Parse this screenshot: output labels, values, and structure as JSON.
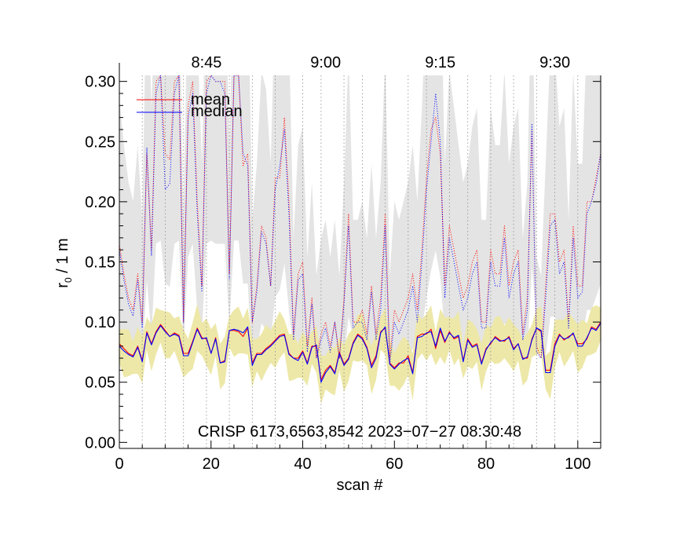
{
  "chart_data": {
    "type": "line",
    "xlabel": "scan #",
    "ylabel_main": "r",
    "ylabel_sub": "0",
    "ylabel_rest": " / 1 m",
    "annotation": "CRISP 6173,6563,8542 2023−07−27 08:30:48",
    "xlim": [
      0,
      105
    ],
    "ylim": [
      -0.005,
      0.305
    ],
    "x_ticks": [
      0,
      20,
      40,
      60,
      80,
      100
    ],
    "x_tick_labels": [
      "0",
      "20",
      "40",
      "60",
      "80",
      "100"
    ],
    "y_ticks": [
      0.0,
      0.05,
      0.1,
      0.15,
      0.2,
      0.25,
      0.3
    ],
    "y_tick_labels": [
      "0.00",
      "0.05",
      "0.10",
      "0.15",
      "0.20",
      "0.25",
      "0.30"
    ],
    "top_axis_ticks": [
      19,
      45,
      70,
      95
    ],
    "top_axis_labels": [
      "8:45",
      "9:00",
      "9:15",
      "9:30"
    ],
    "vertical_gridlines_x": [
      5,
      10,
      14,
      19,
      24,
      29,
      34,
      40,
      44,
      49,
      53,
      58,
      63,
      67,
      72,
      76,
      81,
      86,
      91,
      95,
      100,
      105
    ],
    "legend": [
      {
        "label": "mean",
        "color": "#ff0000"
      },
      {
        "label": "median",
        "color": "#0000ff"
      }
    ],
    "colors": {
      "mean": "#ff0000",
      "median": "#0000ff",
      "band_upper": "#e4e4e4",
      "band_lower": "#ede8a8",
      "grid": "#8c8c8c"
    },
    "series": [
      {
        "name": "upper mean",
        "style": "dotted",
        "color": "#ff0000",
        "x": [
          0,
          1,
          2,
          3,
          4,
          5,
          6,
          7,
          8,
          9,
          10,
          11,
          12,
          13,
          14,
          15,
          16,
          17,
          18,
          19,
          20,
          21,
          22,
          23,
          24,
          25,
          26,
          27,
          28,
          29,
          30,
          31,
          32,
          33,
          34,
          35,
          36,
          37,
          38,
          39,
          40,
          41,
          42,
          43,
          44,
          45,
          46,
          47,
          48,
          49,
          50,
          51,
          52,
          53,
          54,
          55,
          56,
          57,
          58,
          59,
          60,
          61,
          62,
          63,
          64,
          65,
          66,
          67,
          68,
          69,
          70,
          71,
          72,
          73,
          74,
          75,
          76,
          77,
          78,
          79,
          80,
          81,
          82,
          83,
          84,
          85,
          86,
          87,
          88,
          89,
          90,
          91,
          92,
          93,
          94,
          95,
          96,
          97,
          98,
          99,
          100,
          101,
          102,
          103,
          104,
          105
        ],
        "values": [
          0.165,
          0.14,
          0.12,
          0.11,
          0.14,
          0.1,
          0.24,
          0.16,
          0.3,
          0.305,
          0.24,
          0.235,
          0.3,
          0.305,
          0.1,
          0.28,
          0.3,
          0.2,
          0.13,
          0.3,
          0.305,
          0.3,
          0.3,
          0.3,
          0.14,
          0.305,
          0.305,
          0.23,
          0.24,
          0.1,
          0.13,
          0.18,
          0.17,
          0.13,
          0.22,
          0.22,
          0.27,
          0.2,
          0.09,
          0.14,
          0.15,
          0.08,
          0.12,
          0.07,
          0.09,
          0.1,
          0.08,
          0.1,
          0.07,
          0.12,
          0.19,
          0.1,
          0.1,
          0.11,
          0.09,
          0.13,
          0.09,
          0.12,
          0.19,
          0.07,
          0.11,
          0.1,
          0.11,
          0.12,
          0.14,
          0.11,
          0.16,
          0.22,
          0.26,
          0.27,
          0.24,
          0.13,
          0.18,
          0.16,
          0.14,
          0.12,
          0.13,
          0.15,
          0.16,
          0.1,
          0.1,
          0.16,
          0.14,
          0.14,
          0.18,
          0.13,
          0.15,
          0.16,
          0.09,
          0.12,
          0.26,
          0.08,
          0.07,
          0.13,
          0.19,
          0.19,
          0.15,
          0.16,
          0.1,
          0.18,
          0.13,
          0.13,
          0.2,
          0.2,
          0.22,
          0.24
        ]
      },
      {
        "name": "upper median",
        "style": "dotted",
        "color": "#0000ff",
        "x": [
          0,
          1,
          2,
          3,
          4,
          5,
          6,
          7,
          8,
          9,
          10,
          11,
          12,
          13,
          14,
          15,
          16,
          17,
          18,
          19,
          20,
          21,
          22,
          23,
          24,
          25,
          26,
          27,
          28,
          29,
          30,
          31,
          32,
          33,
          34,
          35,
          36,
          37,
          38,
          39,
          40,
          41,
          42,
          43,
          44,
          45,
          46,
          47,
          48,
          49,
          50,
          51,
          52,
          53,
          54,
          55,
          56,
          57,
          58,
          59,
          60,
          61,
          62,
          63,
          64,
          65,
          66,
          67,
          68,
          69,
          70,
          71,
          72,
          73,
          74,
          75,
          76,
          77,
          78,
          79,
          80,
          81,
          82,
          83,
          84,
          85,
          86,
          87,
          88,
          89,
          90,
          91,
          92,
          93,
          94,
          95,
          96,
          97,
          98,
          99,
          100,
          101,
          102,
          103,
          104,
          105
        ],
        "values": [
          0.16,
          0.135,
          0.115,
          0.105,
          0.135,
          0.095,
          0.245,
          0.155,
          0.29,
          0.305,
          0.21,
          0.215,
          0.29,
          0.305,
          0.1,
          0.27,
          0.29,
          0.19,
          0.125,
          0.29,
          0.305,
          0.3,
          0.3,
          0.29,
          0.135,
          0.305,
          0.305,
          0.24,
          0.23,
          0.1,
          0.125,
          0.175,
          0.165,
          0.13,
          0.21,
          0.23,
          0.26,
          0.19,
          0.085,
          0.135,
          0.14,
          0.075,
          0.115,
          0.07,
          0.085,
          0.095,
          0.075,
          0.1,
          0.07,
          0.115,
          0.18,
          0.095,
          0.1,
          0.1,
          0.085,
          0.125,
          0.085,
          0.11,
          0.18,
          0.065,
          0.1,
          0.09,
          0.1,
          0.11,
          0.13,
          0.1,
          0.15,
          0.21,
          0.25,
          0.29,
          0.25,
          0.12,
          0.17,
          0.15,
          0.13,
          0.11,
          0.12,
          0.14,
          0.15,
          0.095,
          0.095,
          0.15,
          0.13,
          0.13,
          0.17,
          0.12,
          0.14,
          0.15,
          0.085,
          0.11,
          0.265,
          0.075,
          0.07,
          0.12,
          0.18,
          0.185,
          0.14,
          0.15,
          0.095,
          0.17,
          0.12,
          0.125,
          0.19,
          0.2,
          0.215,
          0.24
        ]
      },
      {
        "name": "mean",
        "style": "solid",
        "color": "#ff0000",
        "x": [
          0,
          1,
          2,
          3,
          4,
          5,
          6,
          7,
          8,
          9,
          10,
          11,
          12,
          13,
          14,
          15,
          16,
          17,
          18,
          19,
          20,
          21,
          22,
          23,
          24,
          25,
          26,
          27,
          28,
          29,
          30,
          31,
          32,
          33,
          34,
          35,
          36,
          37,
          38,
          39,
          40,
          41,
          42,
          43,
          44,
          45,
          46,
          47,
          48,
          49,
          50,
          51,
          52,
          53,
          54,
          55,
          56,
          57,
          58,
          59,
          60,
          61,
          62,
          63,
          64,
          65,
          66,
          67,
          68,
          69,
          70,
          71,
          72,
          73,
          74,
          75,
          76,
          77,
          78,
          79,
          80,
          81,
          82,
          83,
          84,
          85,
          86,
          87,
          88,
          89,
          90,
          91,
          92,
          93,
          94,
          95,
          96,
          97,
          98,
          99,
          100,
          101,
          102,
          103,
          104,
          105
        ],
        "values": [
          0.082,
          0.078,
          0.074,
          0.072,
          0.08,
          0.068,
          0.092,
          0.082,
          0.092,
          0.098,
          0.093,
          0.088,
          0.091,
          0.089,
          0.074,
          0.074,
          0.084,
          0.095,
          0.087,
          0.086,
          0.074,
          0.087,
          0.066,
          0.068,
          0.093,
          0.093,
          0.092,
          0.088,
          0.095,
          0.066,
          0.074,
          0.074,
          0.078,
          0.081,
          0.085,
          0.089,
          0.09,
          0.074,
          0.07,
          0.07,
          0.076,
          0.066,
          0.08,
          0.08,
          0.052,
          0.06,
          0.064,
          0.058,
          0.075,
          0.065,
          0.07,
          0.083,
          0.09,
          0.087,
          0.079,
          0.064,
          0.072,
          0.092,
          0.095,
          0.066,
          0.062,
          0.066,
          0.066,
          0.072,
          0.058,
          0.088,
          0.09,
          0.09,
          0.094,
          0.078,
          0.093,
          0.083,
          0.092,
          0.086,
          0.088,
          0.068,
          0.086,
          0.08,
          0.082,
          0.066,
          0.078,
          0.082,
          0.088,
          0.085,
          0.084,
          0.088,
          0.078,
          0.082,
          0.07,
          0.07,
          0.086,
          0.095,
          0.092,
          0.06,
          0.06,
          0.082,
          0.09,
          0.085,
          0.088,
          0.09,
          0.082,
          0.082,
          0.086,
          0.096,
          0.094,
          0.1
        ]
      },
      {
        "name": "median",
        "style": "solid",
        "color": "#0000ff",
        "x": [
          0,
          1,
          2,
          3,
          4,
          5,
          6,
          7,
          8,
          9,
          10,
          11,
          12,
          13,
          14,
          15,
          16,
          17,
          18,
          19,
          20,
          21,
          22,
          23,
          24,
          25,
          26,
          27,
          28,
          29,
          30,
          31,
          32,
          33,
          34,
          35,
          36,
          37,
          38,
          39,
          40,
          41,
          42,
          43,
          44,
          45,
          46,
          47,
          48,
          49,
          50,
          51,
          52,
          53,
          54,
          55,
          56,
          57,
          58,
          59,
          60,
          61,
          62,
          63,
          64,
          65,
          66,
          67,
          68,
          69,
          70,
          71,
          72,
          73,
          74,
          75,
          76,
          77,
          78,
          79,
          80,
          81,
          82,
          83,
          84,
          85,
          86,
          87,
          88,
          89,
          90,
          91,
          92,
          93,
          94,
          95,
          96,
          97,
          98,
          99,
          100,
          101,
          102,
          103,
          104,
          105
        ],
        "values": [
          0.08,
          0.076,
          0.073,
          0.071,
          0.079,
          0.067,
          0.091,
          0.081,
          0.091,
          0.097,
          0.092,
          0.088,
          0.09,
          0.088,
          0.072,
          0.072,
          0.083,
          0.094,
          0.086,
          0.087,
          0.074,
          0.086,
          0.066,
          0.067,
          0.093,
          0.094,
          0.093,
          0.091,
          0.096,
          0.064,
          0.073,
          0.073,
          0.077,
          0.08,
          0.084,
          0.088,
          0.089,
          0.073,
          0.07,
          0.068,
          0.075,
          0.065,
          0.079,
          0.081,
          0.05,
          0.058,
          0.063,
          0.057,
          0.074,
          0.064,
          0.069,
          0.082,
          0.089,
          0.086,
          0.078,
          0.062,
          0.07,
          0.091,
          0.096,
          0.065,
          0.061,
          0.065,
          0.068,
          0.07,
          0.057,
          0.087,
          0.088,
          0.091,
          0.092,
          0.08,
          0.095,
          0.084,
          0.091,
          0.087,
          0.089,
          0.067,
          0.085,
          0.079,
          0.081,
          0.065,
          0.077,
          0.083,
          0.087,
          0.084,
          0.085,
          0.087,
          0.077,
          0.082,
          0.069,
          0.071,
          0.085,
          0.095,
          0.093,
          0.058,
          0.058,
          0.08,
          0.089,
          0.086,
          0.087,
          0.091,
          0.08,
          0.08,
          0.087,
          0.095,
          0.093,
          0.099
        ]
      }
    ]
  }
}
